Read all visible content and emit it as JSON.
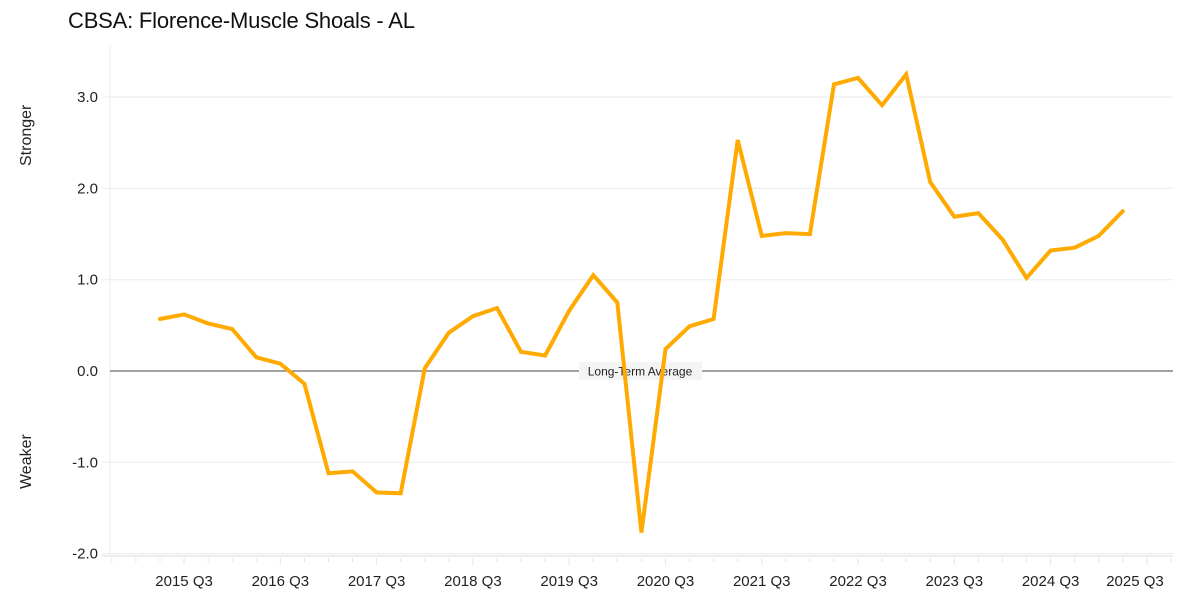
{
  "header": {
    "title": "CBSA: Florence-Muscle Shoals - AL"
  },
  "axis": {
    "stronger_label": "Stronger",
    "weaker_label": "Weaker",
    "reference_label": "Long-Term Average"
  },
  "colors": {
    "line": "#FFAA00",
    "grid": "#EEEEEE",
    "reference": "#444444"
  },
  "chart_data": {
    "type": "line",
    "title": "CBSA: Florence-Muscle Shoals - AL",
    "xlabel": "",
    "ylabel": "Stronger / Weaker",
    "ylim": [
      -2.2,
      3.5
    ],
    "yticks": [
      3.0,
      2.0,
      1.0,
      0.0,
      -1.0,
      -2.0
    ],
    "ytick_labels": [
      "3.0",
      "2.0",
      "1.0",
      "0.0",
      "-1.0",
      "-2.0"
    ],
    "xtick_labels": [
      "2015 Q3",
      "2016 Q3",
      "2017 Q3",
      "2018 Q3",
      "2019 Q3",
      "2020 Q3",
      "2021 Q3",
      "2022 Q3",
      "2023 Q3",
      "2024 Q3",
      "2025 Q3"
    ],
    "grid": true,
    "legend": "none",
    "annotations": [
      {
        "y": 0.0,
        "text": "Long-Term Average"
      }
    ],
    "x": [
      "2015 Q2",
      "2015 Q3",
      "2015 Q4",
      "2016 Q1",
      "2016 Q2",
      "2016 Q3",
      "2016 Q4",
      "2017 Q1",
      "2017 Q2",
      "2017 Q3",
      "2017 Q4",
      "2018 Q1",
      "2018 Q2",
      "2018 Q3",
      "2018 Q4",
      "2019 Q1",
      "2019 Q2",
      "2019 Q3",
      "2019 Q4",
      "2020 Q1",
      "2020 Q2",
      "2020 Q3",
      "2020 Q4",
      "2021 Q1",
      "2021 Q2",
      "2021 Q3",
      "2021 Q4",
      "2022 Q1",
      "2022 Q2",
      "2022 Q3",
      "2022 Q4",
      "2023 Q1",
      "2023 Q2",
      "2023 Q3",
      "2023 Q4",
      "2024 Q1",
      "2024 Q2",
      "2024 Q3",
      "2024 Q4",
      "2025 Q1",
      "2025 Q2"
    ],
    "series": [
      {
        "name": "Florence-Muscle Shoals - AL",
        "values": [
          0.57,
          0.62,
          0.52,
          0.46,
          0.15,
          0.08,
          -0.14,
          -1.12,
          -1.1,
          -1.33,
          -1.34,
          0.03,
          0.42,
          0.6,
          0.69,
          0.21,
          0.17,
          0.66,
          1.05,
          0.75,
          -1.77,
          0.24,
          0.49,
          0.57,
          2.53,
          1.48,
          1.51,
          1.5,
          3.14,
          3.21,
          2.91,
          3.25,
          2.07,
          1.69,
          1.73,
          1.44,
          1.02,
          1.32,
          1.35,
          1.48,
          1.75
        ]
      }
    ]
  }
}
